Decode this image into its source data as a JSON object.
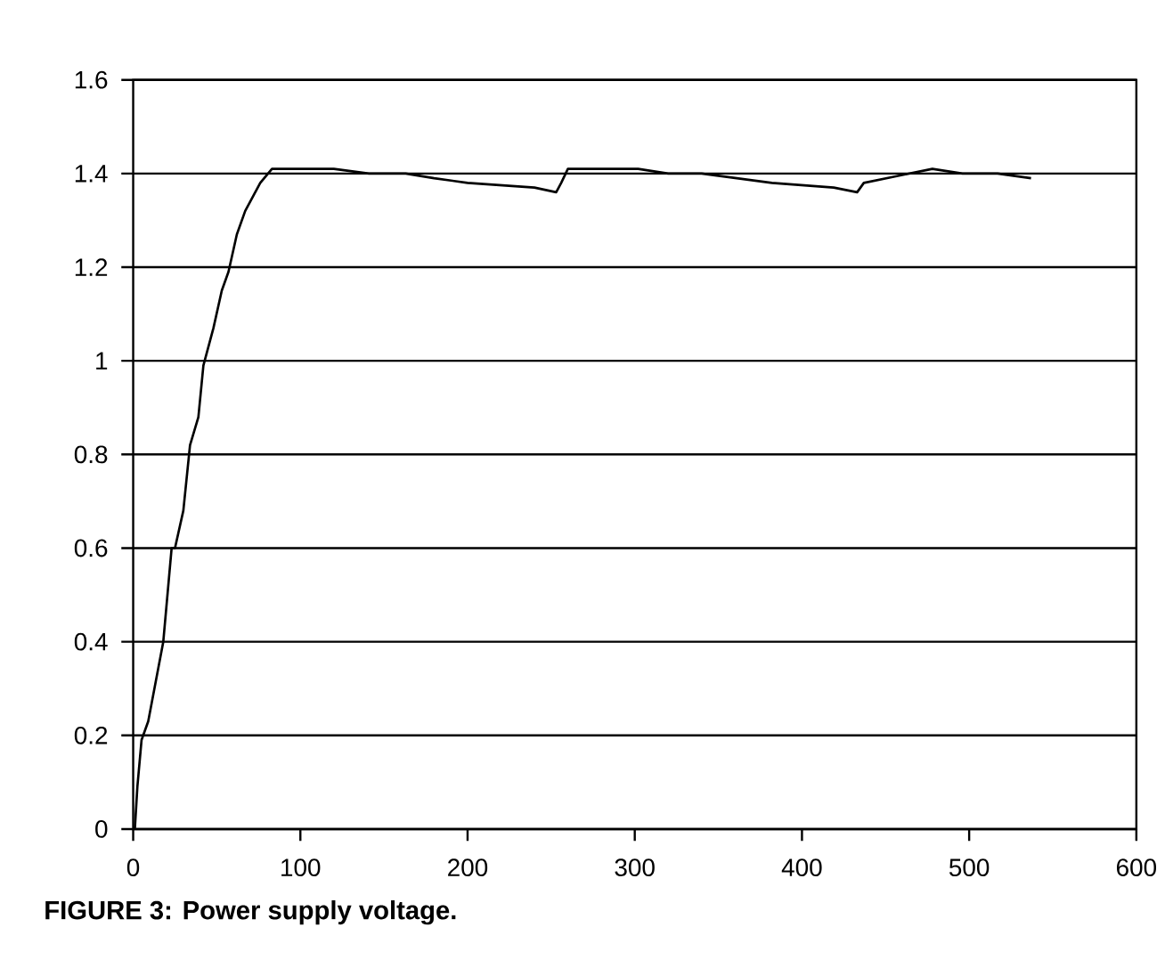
{
  "chart_data": {
    "type": "line",
    "color": "#000000",
    "x": [
      1,
      2.5,
      5,
      9,
      18,
      23,
      25,
      30,
      34,
      39,
      42,
      48,
      53,
      57,
      62,
      67,
      76,
      83,
      120,
      141,
      163,
      180,
      200,
      240,
      253,
      256,
      260,
      302,
      320,
      340,
      361,
      382,
      419,
      433,
      437,
      478,
      496,
      517,
      537
    ],
    "values": [
      0,
      0.09,
      0.19,
      0.23,
      0.4,
      0.6,
      0.6,
      0.68,
      0.82,
      0.88,
      0.99,
      1.07,
      1.15,
      1.19,
      1.27,
      1.32,
      1.38,
      1.41,
      1.41,
      1.4,
      1.4,
      1.39,
      1.38,
      1.37,
      1.36,
      1.38,
      1.41,
      1.41,
      1.4,
      1.4,
      1.39,
      1.38,
      1.37,
      1.36,
      1.38,
      1.41,
      1.4,
      1.4,
      1.39
    ],
    "xlim": [
      0,
      600
    ],
    "ylim": [
      0,
      1.6
    ],
    "xticks": [
      0,
      100,
      200,
      300,
      400,
      500,
      600
    ],
    "yticks": [
      0,
      0.2,
      0.4,
      0.6,
      0.8,
      1,
      1.2,
      1.4,
      1.6
    ],
    "grid": "y",
    "marker": "none",
    "line_style": "solid",
    "annotations": [
      "FIGURE 3: Power supply voltage."
    ]
  }
}
